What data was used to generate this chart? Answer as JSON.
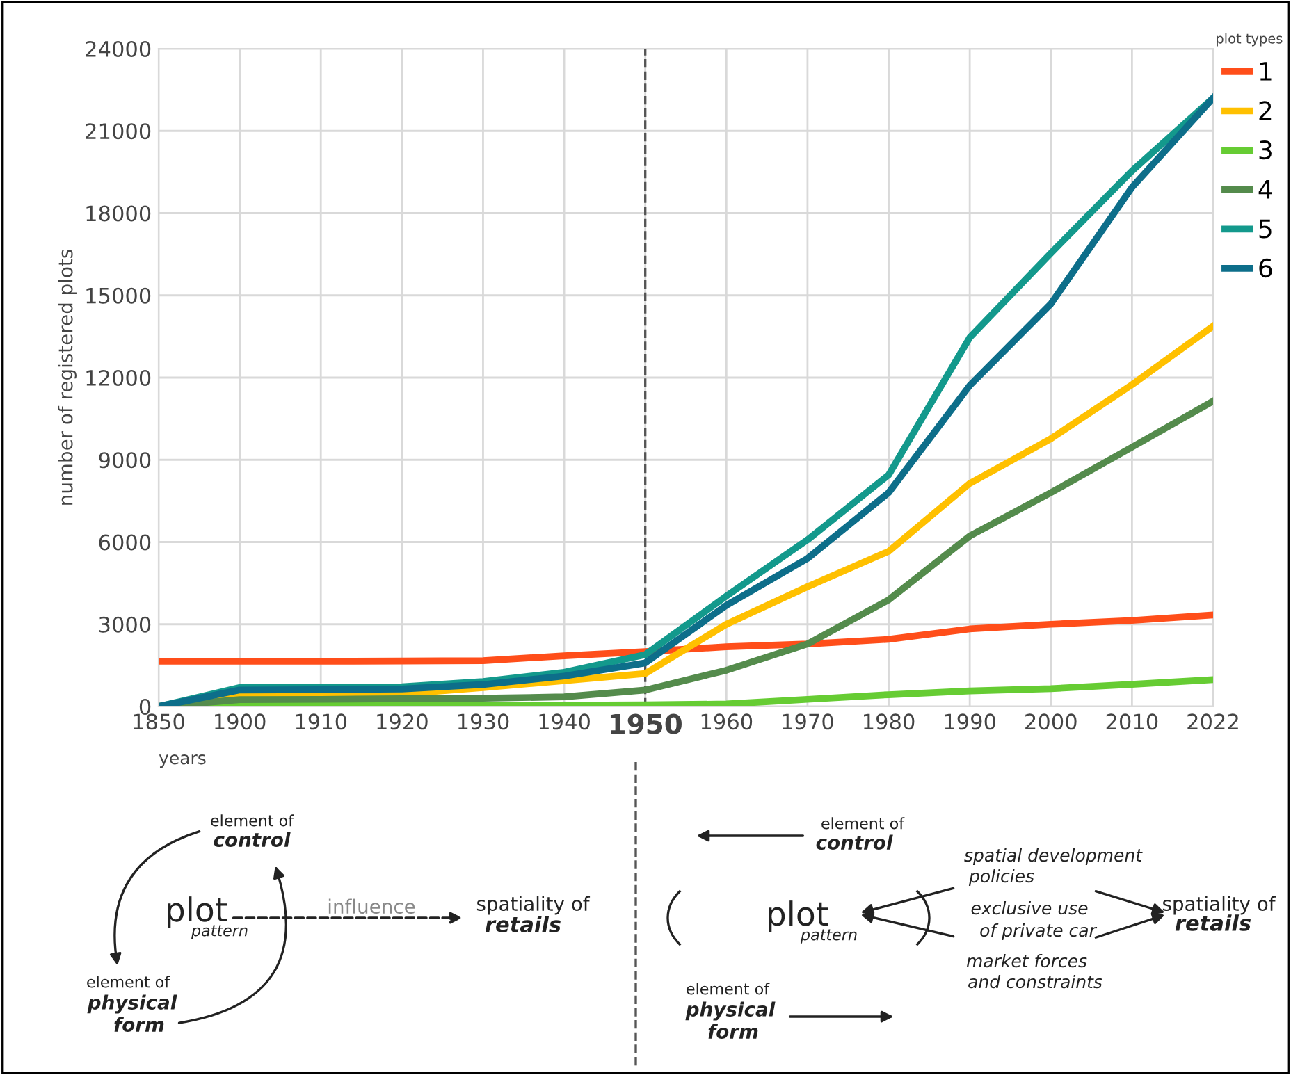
{
  "chart_data": {
    "type": "line",
    "categories": [
      "1850",
      "1900",
      "1910",
      "1920",
      "1930",
      "1940",
      "1950",
      "1960",
      "1970",
      "1980",
      "1990",
      "2000",
      "2010",
      "2022"
    ],
    "series": [
      {
        "name": "1",
        "color": "#ff4e1a",
        "values": [
          1650,
          1650,
          1650,
          1660,
          1670,
          1850,
          2000,
          2180,
          2280,
          2450,
          2830,
          3000,
          3140,
          3340
        ]
      },
      {
        "name": "2",
        "color": "#ffc000",
        "values": [
          0,
          430,
          430,
          460,
          690,
          940,
          1200,
          3000,
          4370,
          5660,
          8140,
          9770,
          11740,
          13880
        ]
      },
      {
        "name": "3",
        "color": "#66cc33",
        "values": [
          0,
          50,
          50,
          50,
          50,
          50,
          60,
          90,
          260,
          430,
          570,
          650,
          810,
          980
        ]
      },
      {
        "name": "4",
        "color": "#548b4c",
        "values": [
          0,
          250,
          260,
          280,
          300,
          350,
          600,
          1320,
          2280,
          3890,
          6220,
          7800,
          9460,
          11140
        ]
      },
      {
        "name": "5",
        "color": "#13998c",
        "values": [
          0,
          690,
          690,
          720,
          910,
          1250,
          1890,
          4030,
          6080,
          8450,
          13460,
          16540,
          19540,
          22200
        ]
      },
      {
        "name": "6",
        "color": "#0d6e8a",
        "values": [
          0,
          600,
          610,
          640,
          800,
          1110,
          1590,
          3690,
          5400,
          7800,
          11710,
          14690,
          18940,
          22200
        ]
      }
    ],
    "ylabel": "number of registered plots",
    "xlabel": "years",
    "legend_title": "plot types",
    "ylim": [
      0,
      24000
    ],
    "yticks": [
      0,
      3000,
      6000,
      9000,
      12000,
      15000,
      18000,
      21000,
      24000
    ],
    "grid": true,
    "legend": "top right",
    "line_style": "solid",
    "marker": "none",
    "ref_lines": [
      {
        "axis": "x",
        "value": "1950",
        "color": "#555555",
        "line_style": "dashed"
      }
    ],
    "annotations": [
      "element of",
      "control",
      "plot",
      "pattern",
      "influence",
      "spatiality of",
      "retails",
      "element of",
      "physical",
      "form",
      "element of",
      "control",
      "plot",
      "pattern",
      "spatial development",
      "policies",
      "exclusive use",
      "of private car",
      "market forces",
      "and constraints",
      "spatiality of",
      "retails",
      "element of",
      "physical",
      "form"
    ]
  }
}
